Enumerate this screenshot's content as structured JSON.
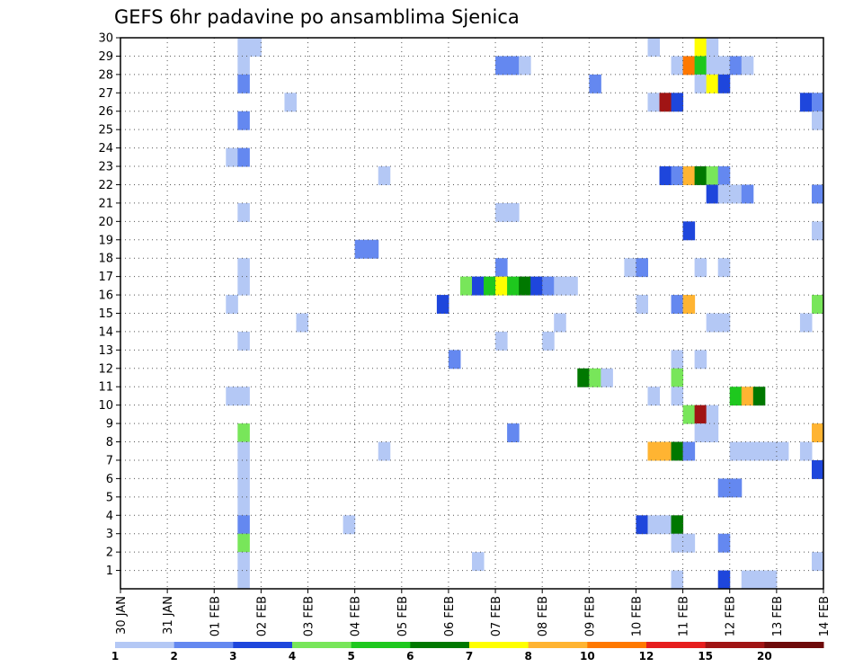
{
  "chart_data": {
    "type": "heatmap",
    "title": "GEFS 6hr padavine po ansamblima Sjenica",
    "xlabel": "",
    "ylabel": "",
    "x_tick_labels": [
      "30 JAN",
      "31 JAN",
      "01 FEB",
      "02 FEB",
      "03 FEB",
      "04 FEB",
      "05 FEB",
      "06 FEB",
      "07 FEB",
      "08 FEB",
      "09 FEB",
      "10 FEB",
      "11 FEB",
      "12 FEB",
      "13 FEB",
      "14 FEB"
    ],
    "y_tick_labels": [
      "1",
      "2",
      "3",
      "4",
      "5",
      "6",
      "7",
      "8",
      "9",
      "10",
      "11",
      "12",
      "13",
      "14",
      "15",
      "16",
      "17",
      "18",
      "19",
      "20",
      "21",
      "22",
      "23",
      "24",
      "25",
      "26",
      "27",
      "28",
      "29",
      "30"
    ],
    "ylim": [
      0,
      30
    ],
    "grid": true,
    "colorbar": {
      "labels": [
        "1",
        "2",
        "3",
        "4",
        "5",
        "6",
        "7",
        "8",
        "10",
        "12",
        "15",
        "20"
      ],
      "colors": [
        "#b4c8f5",
        "#6488f0",
        "#1e46dc",
        "#78e65a",
        "#1ec81e",
        "#007800",
        "#ffff00",
        "#ffb432",
        "#ff7800",
        "#e61e1e",
        "#a01414",
        "#6e0a0a"
      ]
    },
    "cells": [
      {
        "x": 2.5,
        "y": 29,
        "c": 1
      },
      {
        "x": 2.75,
        "y": 29,
        "c": 1
      },
      {
        "x": 2.5,
        "y": 28,
        "c": 1
      },
      {
        "x": 2.5,
        "y": 27,
        "c": 2
      },
      {
        "x": 3.5,
        "y": 26,
        "c": 1
      },
      {
        "x": 2.5,
        "y": 25,
        "c": 2
      },
      {
        "x": 2.25,
        "y": 23,
        "c": 1
      },
      {
        "x": 2.5,
        "y": 23,
        "c": 2
      },
      {
        "x": 5.5,
        "y": 22,
        "c": 1
      },
      {
        "x": 2.5,
        "y": 20,
        "c": 1
      },
      {
        "x": 5,
        "y": 18,
        "c": 2
      },
      {
        "x": 5.25,
        "y": 18,
        "c": 2
      },
      {
        "x": 2.5,
        "y": 17,
        "c": 1
      },
      {
        "x": 2.5,
        "y": 16,
        "c": 1
      },
      {
        "x": 2.25,
        "y": 15,
        "c": 1
      },
      {
        "x": 3.75,
        "y": 14,
        "c": 1
      },
      {
        "x": 2.5,
        "y": 13,
        "c": 1
      },
      {
        "x": 2.25,
        "y": 10,
        "c": 1
      },
      {
        "x": 2.5,
        "y": 10,
        "c": 1
      },
      {
        "x": 2.5,
        "y": 8,
        "c": 4
      },
      {
        "x": 2.5,
        "y": 7,
        "c": 1
      },
      {
        "x": 5.5,
        "y": 7,
        "c": 1
      },
      {
        "x": 2.5,
        "y": 6,
        "c": 1
      },
      {
        "x": 2.5,
        "y": 5,
        "c": 1
      },
      {
        "x": 2.5,
        "y": 4,
        "c": 1
      },
      {
        "x": 2.5,
        "y": 3,
        "c": 2
      },
      {
        "x": 4.75,
        "y": 3,
        "c": 1
      },
      {
        "x": 2.5,
        "y": 2,
        "c": 4
      },
      {
        "x": 2.5,
        "y": 1,
        "c": 1
      },
      {
        "x": 2.5,
        "y": 0,
        "c": 1
      },
      {
        "x": 8,
        "y": 28,
        "c": 2
      },
      {
        "x": 8.25,
        "y": 28,
        "c": 2
      },
      {
        "x": 8.5,
        "y": 28,
        "c": 1
      },
      {
        "x": 8,
        "y": 20,
        "c": 1
      },
      {
        "x": 8.25,
        "y": 20,
        "c": 1
      },
      {
        "x": 8,
        "y": 17,
        "c": 2
      },
      {
        "x": 7.25,
        "y": 16,
        "c": 4
      },
      {
        "x": 7.5,
        "y": 16,
        "c": 3
      },
      {
        "x": 7.75,
        "y": 16,
        "c": 5
      },
      {
        "x": 8,
        "y": 16,
        "c": 7
      },
      {
        "x": 8.25,
        "y": 16,
        "c": 5
      },
      {
        "x": 8.5,
        "y": 16,
        "c": 6
      },
      {
        "x": 8.75,
        "y": 16,
        "c": 3
      },
      {
        "x": 9,
        "y": 16,
        "c": 2
      },
      {
        "x": 9.25,
        "y": 16,
        "c": 1
      },
      {
        "x": 9.5,
        "y": 16,
        "c": 1
      },
      {
        "x": 6.75,
        "y": 15,
        "c": 3
      },
      {
        "x": 9.25,
        "y": 14,
        "c": 1
      },
      {
        "x": 8,
        "y": 13,
        "c": 1
      },
      {
        "x": 9,
        "y": 13,
        "c": 1
      },
      {
        "x": 7,
        "y": 12,
        "c": 2
      },
      {
        "x": 8.25,
        "y": 8,
        "c": 2
      },
      {
        "x": 7.5,
        "y": 1,
        "c": 1
      },
      {
        "x": 10,
        "y": 27,
        "c": 2
      },
      {
        "x": 9.75,
        "y": 11,
        "c": 6
      },
      {
        "x": 10,
        "y": 11,
        "c": 4
      },
      {
        "x": 10.25,
        "y": 11,
        "c": 1
      },
      {
        "x": 11.25,
        "y": 29,
        "c": 1
      },
      {
        "x": 12.25,
        "y": 29,
        "c": 7
      },
      {
        "x": 12.5,
        "y": 29,
        "c": 1
      },
      {
        "x": 11.75,
        "y": 28,
        "c": 1
      },
      {
        "x": 12,
        "y": 28,
        "c": 9
      },
      {
        "x": 12.25,
        "y": 28,
        "c": 5
      },
      {
        "x": 12.5,
        "y": 28,
        "c": 1
      },
      {
        "x": 12.75,
        "y": 28,
        "c": 1
      },
      {
        "x": 13,
        "y": 28,
        "c": 2
      },
      {
        "x": 13.25,
        "y": 28,
        "c": 1
      },
      {
        "x": 12.25,
        "y": 27,
        "c": 1
      },
      {
        "x": 12.5,
        "y": 27,
        "c": 7
      },
      {
        "x": 12.75,
        "y": 27,
        "c": 3
      },
      {
        "x": 11.25,
        "y": 26,
        "c": 1
      },
      {
        "x": 11.5,
        "y": 26,
        "c": 11
      },
      {
        "x": 11.75,
        "y": 26,
        "c": 3
      },
      {
        "x": 14.5,
        "y": 26,
        "c": 3
      },
      {
        "x": 14.75,
        "y": 26,
        "c": 2
      },
      {
        "x": 14.75,
        "y": 25,
        "c": 1
      },
      {
        "x": 11.5,
        "y": 22,
        "c": 3
      },
      {
        "x": 11.75,
        "y": 22,
        "c": 2
      },
      {
        "x": 12,
        "y": 22,
        "c": 8
      },
      {
        "x": 12.25,
        "y": 22,
        "c": 6
      },
      {
        "x": 12.5,
        "y": 22,
        "c": 4
      },
      {
        "x": 12.75,
        "y": 22,
        "c": 2
      },
      {
        "x": 12.5,
        "y": 21,
        "c": 3
      },
      {
        "x": 12.75,
        "y": 21,
        "c": 1
      },
      {
        "x": 13,
        "y": 21,
        "c": 1
      },
      {
        "x": 13.25,
        "y": 21,
        "c": 2
      },
      {
        "x": 14.75,
        "y": 21,
        "c": 2
      },
      {
        "x": 12,
        "y": 19,
        "c": 3
      },
      {
        "x": 14.75,
        "y": 19,
        "c": 1
      },
      {
        "x": 10.75,
        "y": 17,
        "c": 1
      },
      {
        "x": 11,
        "y": 17,
        "c": 2
      },
      {
        "x": 12.25,
        "y": 17,
        "c": 1
      },
      {
        "x": 12.75,
        "y": 17,
        "c": 1
      },
      {
        "x": 11,
        "y": 15,
        "c": 1
      },
      {
        "x": 11.75,
        "y": 15,
        "c": 2
      },
      {
        "x": 12,
        "y": 15,
        "c": 8
      },
      {
        "x": 14.75,
        "y": 15,
        "c": 4
      },
      {
        "x": 12.5,
        "y": 14,
        "c": 1
      },
      {
        "x": 12.75,
        "y": 14,
        "c": 1
      },
      {
        "x": 14.5,
        "y": 14,
        "c": 1
      },
      {
        "x": 11.75,
        "y": 12,
        "c": 1
      },
      {
        "x": 12.25,
        "y": 12,
        "c": 1
      },
      {
        "x": 11.75,
        "y": 11,
        "c": 4
      },
      {
        "x": 11.25,
        "y": 10,
        "c": 1
      },
      {
        "x": 11.75,
        "y": 10,
        "c": 1
      },
      {
        "x": 13,
        "y": 10,
        "c": 5
      },
      {
        "x": 13.25,
        "y": 10,
        "c": 8
      },
      {
        "x": 13.5,
        "y": 10,
        "c": 6
      },
      {
        "x": 12,
        "y": 9,
        "c": 4
      },
      {
        "x": 12.25,
        "y": 9,
        "c": 11
      },
      {
        "x": 12.5,
        "y": 9,
        "c": 1
      },
      {
        "x": 12.25,
        "y": 8,
        "c": 1
      },
      {
        "x": 12.5,
        "y": 8,
        "c": 1
      },
      {
        "x": 14.75,
        "y": 8,
        "c": 8
      },
      {
        "x": 11.25,
        "y": 7,
        "c": 8
      },
      {
        "x": 11.5,
        "y": 7,
        "c": 8
      },
      {
        "x": 11.75,
        "y": 7,
        "c": 6
      },
      {
        "x": 12,
        "y": 7,
        "c": 2
      },
      {
        "x": 13,
        "y": 7,
        "c": 1
      },
      {
        "x": 13.25,
        "y": 7,
        "c": 1
      },
      {
        "x": 13.5,
        "y": 7,
        "c": 1
      },
      {
        "x": 13.75,
        "y": 7,
        "c": 1
      },
      {
        "x": 14,
        "y": 7,
        "c": 1
      },
      {
        "x": 14.5,
        "y": 7,
        "c": 1
      },
      {
        "x": 14.75,
        "y": 6,
        "c": 3
      },
      {
        "x": 12.75,
        "y": 5,
        "c": 2
      },
      {
        "x": 13,
        "y": 5,
        "c": 2
      },
      {
        "x": 11,
        "y": 3,
        "c": 3
      },
      {
        "x": 11.25,
        "y": 3,
        "c": 1
      },
      {
        "x": 11.5,
        "y": 3,
        "c": 1
      },
      {
        "x": 11.75,
        "y": 3,
        "c": 6
      },
      {
        "x": 11.75,
        "y": 2,
        "c": 1
      },
      {
        "x": 12,
        "y": 2,
        "c": 1
      },
      {
        "x": 12.75,
        "y": 2,
        "c": 2
      },
      {
        "x": 14.75,
        "y": 1,
        "c": 1
      },
      {
        "x": 11.75,
        "y": 0,
        "c": 1
      },
      {
        "x": 12.75,
        "y": 0,
        "c": 3
      },
      {
        "x": 13.25,
        "y": 0,
        "c": 1
      },
      {
        "x": 13.5,
        "y": 0,
        "c": 1
      },
      {
        "x": 13.75,
        "y": 0,
        "c": 1
      }
    ]
  }
}
